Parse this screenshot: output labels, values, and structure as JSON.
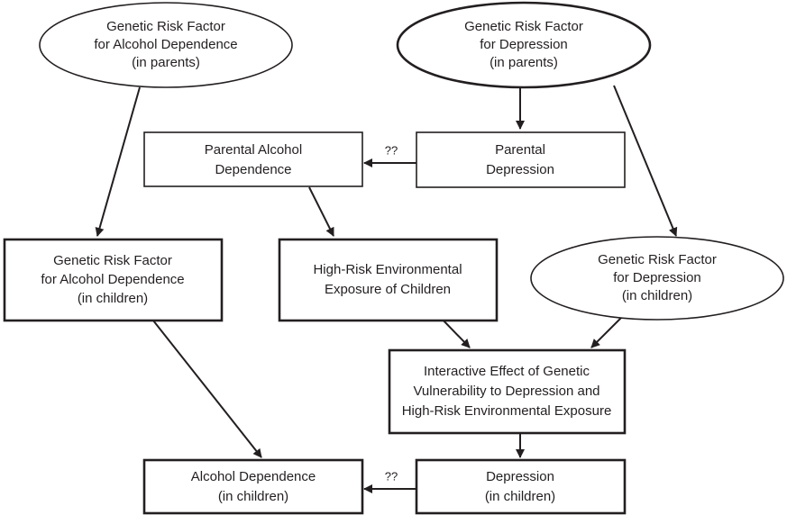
{
  "nodes": [
    {
      "lines": [
        "Genetic Risk Factor",
        "for Alcohol Dependence",
        "(in parents)"
      ]
    },
    {
      "lines": [
        "Genetic Risk Factor",
        "for Depression",
        "(in parents)"
      ]
    },
    {
      "lines": [
        "Parental Alcohol",
        "Dependence"
      ]
    },
    {
      "lines": [
        "Parental",
        "Depression"
      ]
    },
    {
      "lines": [
        "Genetic Risk Factor",
        "for Alcohol Dependence",
        "(in children)"
      ]
    },
    {
      "lines": [
        "High-Risk Environmental",
        "Exposure of Children"
      ]
    },
    {
      "lines": [
        "Genetic Risk Factor",
        "for Depression",
        "(in children)"
      ]
    },
    {
      "lines": [
        "Interactive Effect of Genetic",
        "Vulnerability to Depression and",
        "High-Risk Environmental Exposure"
      ]
    },
    {
      "lines": [
        "Alcohol Dependence",
        "(in children)"
      ]
    },
    {
      "lines": [
        "Depression",
        "(in children)"
      ]
    }
  ],
  "edges": [
    {
      "label": "??"
    },
    {
      "label": "??"
    }
  ]
}
